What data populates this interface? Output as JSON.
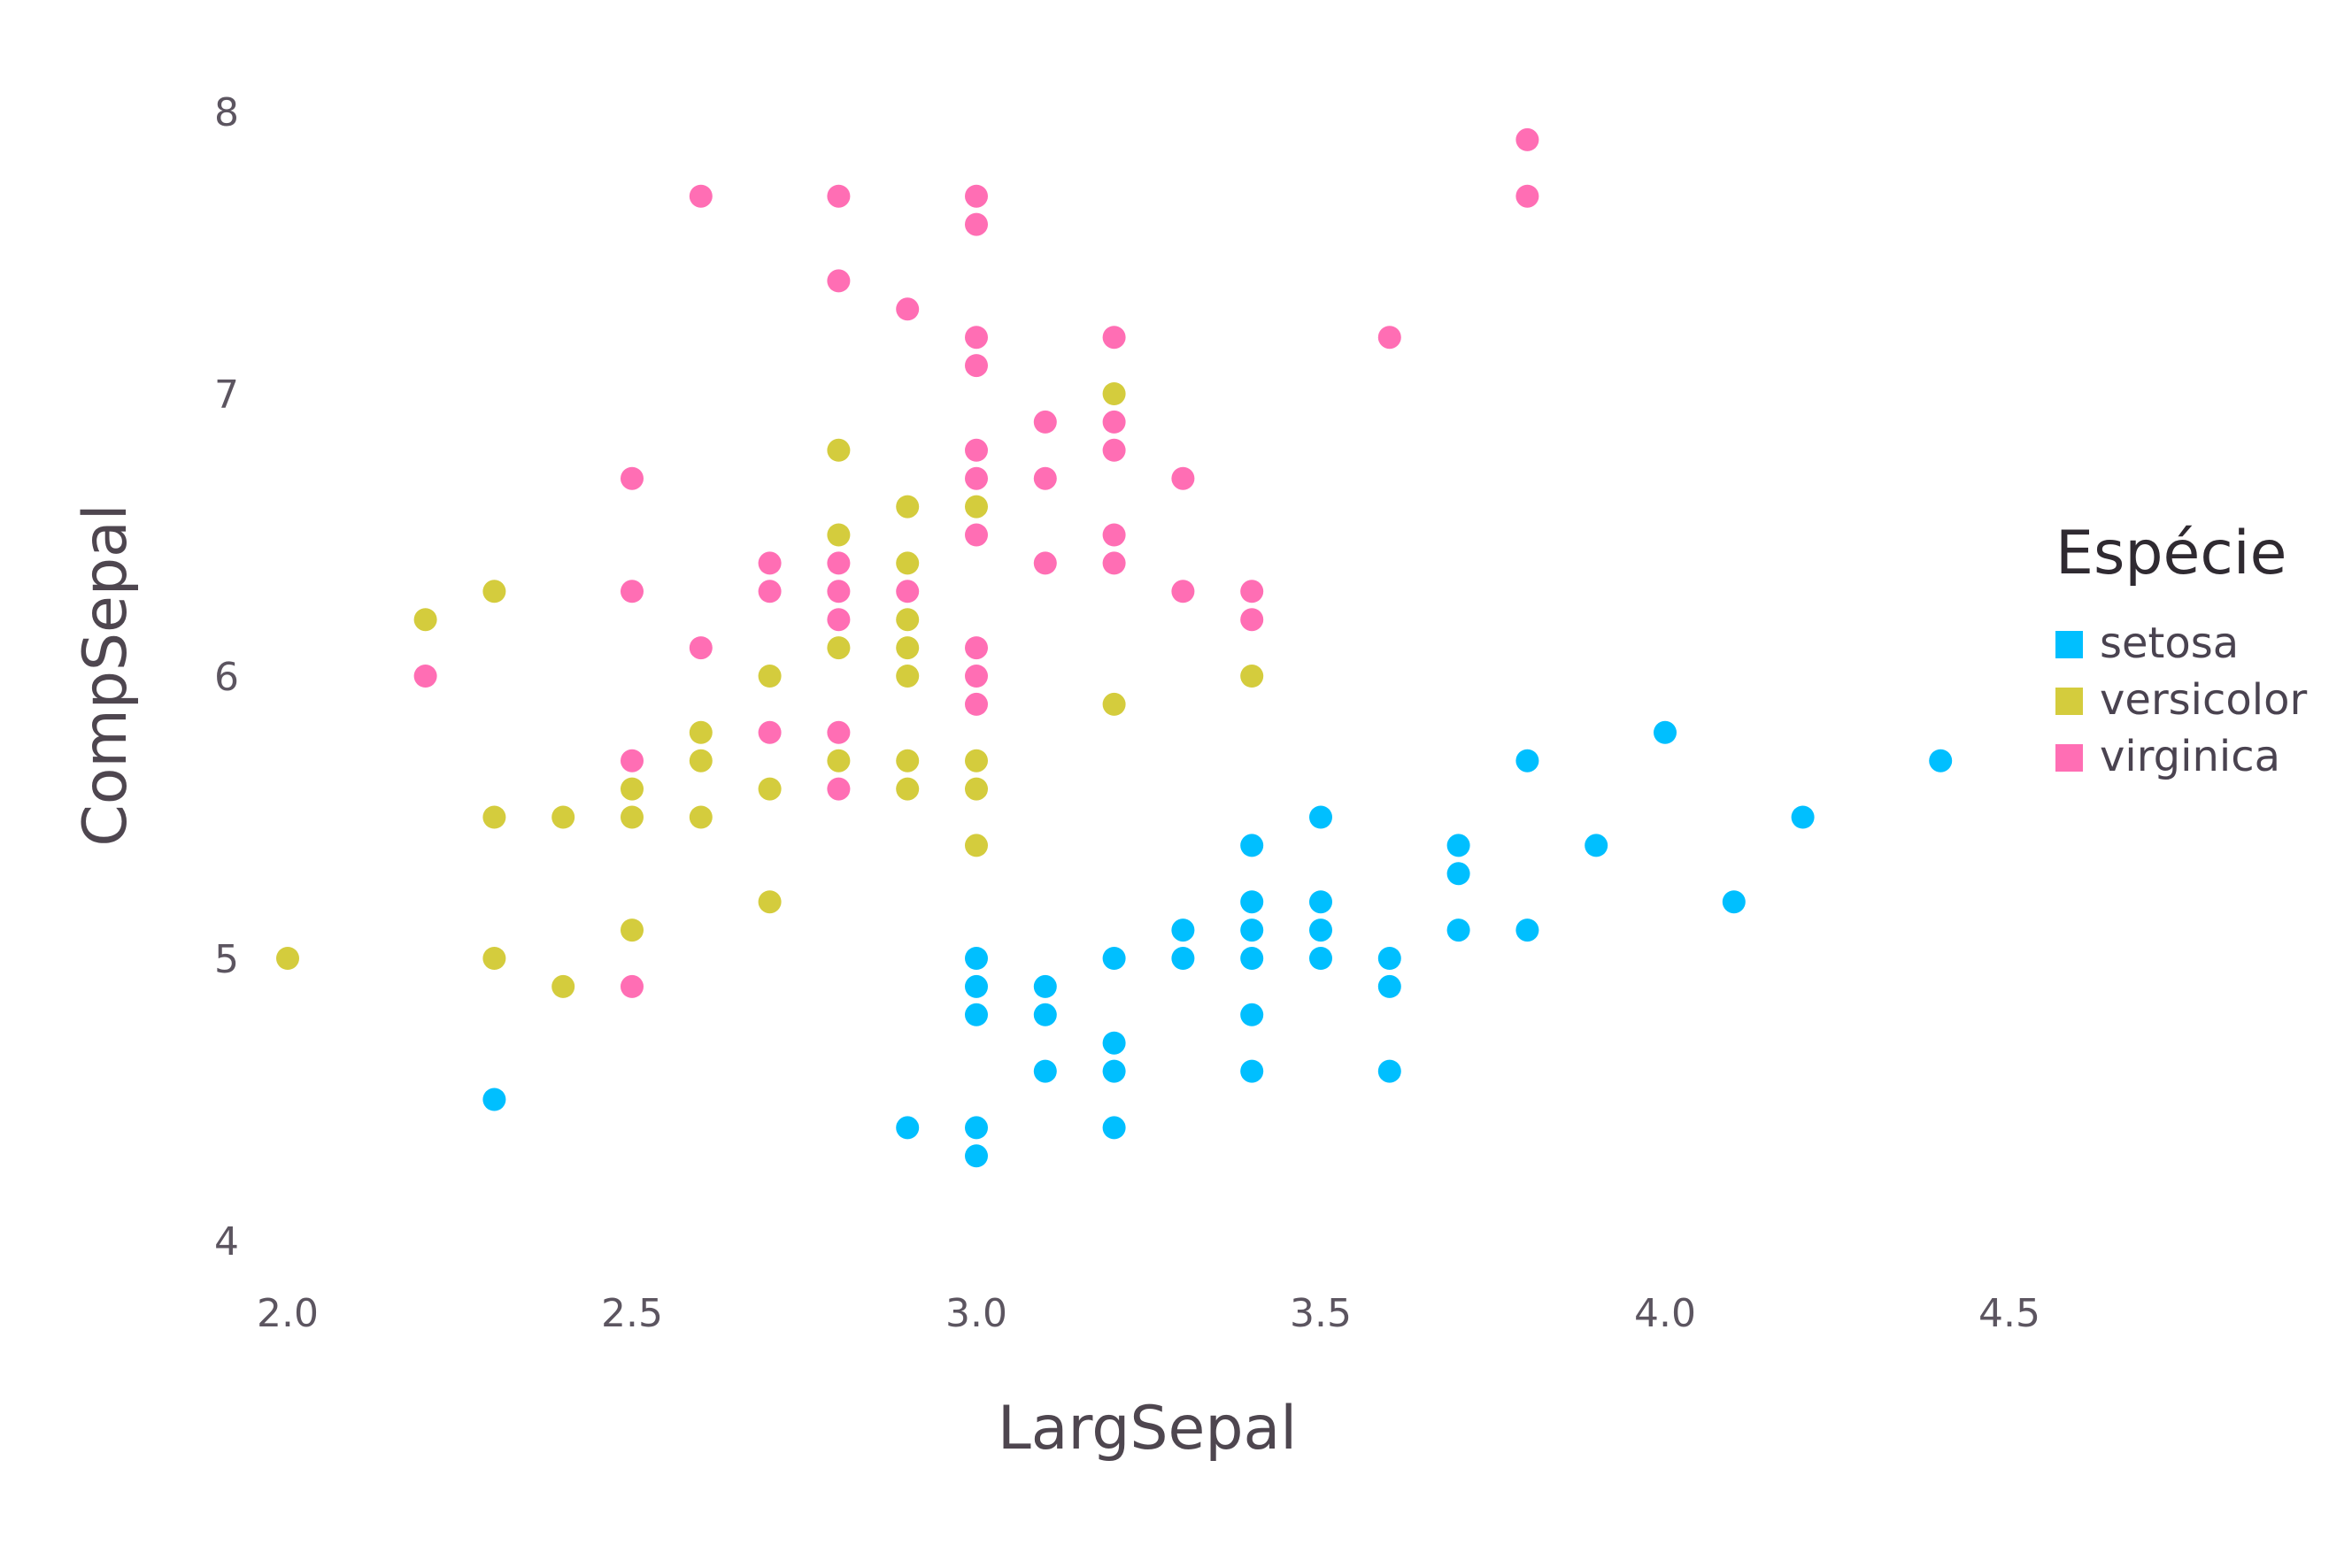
{
  "chart_data": {
    "type": "scatter",
    "xlabel": "LargSepal",
    "ylabel": "CompSepal",
    "xlim": [
      2.0,
      4.9
    ],
    "ylim": [
      4.0,
      8.0
    ],
    "x_ticks": [
      "2.0",
      "2.5",
      "3.0",
      "3.5",
      "4.0",
      "4.5"
    ],
    "y_ticks": [
      "4",
      "5",
      "6",
      "7",
      "8"
    ],
    "grid": false,
    "legend": {
      "title": "Espécie",
      "placement": "right",
      "items": [
        "setosa",
        "versicolor",
        "virginica"
      ]
    },
    "series": [
      {
        "name": "setosa",
        "color": "#00bfff",
        "points": [
          [
            2.3,
            4.5
          ],
          [
            2.9,
            4.4
          ],
          [
            3.0,
            4.4
          ],
          [
            3.0,
            4.3
          ],
          [
            3.0,
            5.0
          ],
          [
            3.0,
            4.9
          ],
          [
            3.0,
            4.8
          ],
          [
            3.1,
            4.9
          ],
          [
            3.1,
            4.8
          ],
          [
            3.1,
            4.6
          ],
          [
            3.2,
            5.0
          ],
          [
            3.2,
            4.7
          ],
          [
            3.2,
            4.6
          ],
          [
            3.2,
            4.4
          ],
          [
            3.3,
            5.1
          ],
          [
            3.3,
            5.0
          ],
          [
            3.4,
            5.4
          ],
          [
            3.4,
            5.2
          ],
          [
            3.4,
            5.1
          ],
          [
            3.4,
            5.0
          ],
          [
            3.4,
            4.8
          ],
          [
            3.4,
            4.6
          ],
          [
            3.5,
            5.5
          ],
          [
            3.5,
            5.2
          ],
          [
            3.5,
            5.1
          ],
          [
            3.5,
            5.0
          ],
          [
            3.6,
            5.0
          ],
          [
            3.6,
            4.9
          ],
          [
            3.6,
            4.6
          ],
          [
            3.7,
            5.4
          ],
          [
            3.7,
            5.3
          ],
          [
            3.7,
            5.1
          ],
          [
            3.8,
            5.7
          ],
          [
            3.8,
            5.1
          ],
          [
            3.9,
            5.4
          ],
          [
            4.0,
            5.8
          ],
          [
            4.1,
            5.2
          ],
          [
            4.2,
            5.5
          ],
          [
            4.4,
            5.7
          ]
        ]
      },
      {
        "name": "versicolor",
        "color": "#d4cc3d",
        "points": [
          [
            2.0,
            5.0
          ],
          [
            2.2,
            6.2
          ],
          [
            2.3,
            6.3
          ],
          [
            2.3,
            5.5
          ],
          [
            2.3,
            5.0
          ],
          [
            2.4,
            5.5
          ],
          [
            2.4,
            4.9
          ],
          [
            2.5,
            5.6
          ],
          [
            2.5,
            5.5
          ],
          [
            2.5,
            5.1
          ],
          [
            2.6,
            5.8
          ],
          [
            2.6,
            5.7
          ],
          [
            2.6,
            5.5
          ],
          [
            2.7,
            6.0
          ],
          [
            2.7,
            5.6
          ],
          [
            2.7,
            5.2
          ],
          [
            2.8,
            6.8
          ],
          [
            2.8,
            6.5
          ],
          [
            2.8,
            6.1
          ],
          [
            2.8,
            5.7
          ],
          [
            2.9,
            6.6
          ],
          [
            2.9,
            6.4
          ],
          [
            2.9,
            6.2
          ],
          [
            2.9,
            6.1
          ],
          [
            2.9,
            6.0
          ],
          [
            2.9,
            5.7
          ],
          [
            2.9,
            5.6
          ],
          [
            3.0,
            6.6
          ],
          [
            3.0,
            5.7
          ],
          [
            3.0,
            5.6
          ],
          [
            3.0,
            5.4
          ],
          [
            3.2,
            7.0
          ],
          [
            3.2,
            5.9
          ],
          [
            3.4,
            6.0
          ]
        ]
      },
      {
        "name": "virginica",
        "color": "#ff6eb4",
        "points": [
          [
            2.2,
            6.0
          ],
          [
            2.5,
            6.7
          ],
          [
            2.5,
            6.3
          ],
          [
            2.5,
            5.7
          ],
          [
            2.5,
            4.9
          ],
          [
            2.6,
            7.7
          ],
          [
            2.6,
            6.1
          ],
          [
            2.7,
            6.4
          ],
          [
            2.7,
            6.3
          ],
          [
            2.7,
            5.8
          ],
          [
            2.8,
            7.7
          ],
          [
            2.8,
            7.4
          ],
          [
            2.8,
            6.4
          ],
          [
            2.8,
            6.3
          ],
          [
            2.8,
            6.2
          ],
          [
            2.8,
            5.8
          ],
          [
            2.8,
            5.6
          ],
          [
            2.9,
            7.3
          ],
          [
            2.9,
            6.3
          ],
          [
            3.0,
            7.7
          ],
          [
            3.0,
            7.6
          ],
          [
            3.0,
            7.2
          ],
          [
            3.0,
            7.1
          ],
          [
            3.0,
            6.8
          ],
          [
            3.0,
            6.7
          ],
          [
            3.0,
            6.5
          ],
          [
            3.0,
            6.1
          ],
          [
            3.0,
            6.0
          ],
          [
            3.0,
            5.9
          ],
          [
            3.1,
            6.9
          ],
          [
            3.1,
            6.7
          ],
          [
            3.1,
            6.4
          ],
          [
            3.2,
            7.2
          ],
          [
            3.2,
            6.9
          ],
          [
            3.2,
            6.8
          ],
          [
            3.2,
            6.5
          ],
          [
            3.2,
            6.4
          ],
          [
            3.3,
            6.7
          ],
          [
            3.3,
            6.3
          ],
          [
            3.4,
            6.3
          ],
          [
            3.4,
            6.2
          ],
          [
            3.6,
            7.2
          ],
          [
            3.8,
            7.9
          ],
          [
            3.8,
            7.7
          ]
        ]
      }
    ]
  }
}
